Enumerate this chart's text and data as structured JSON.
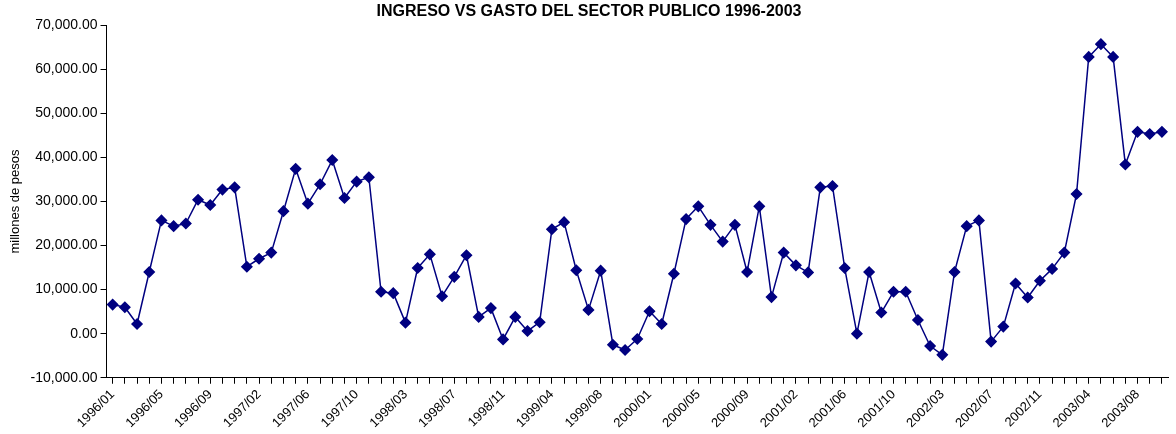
{
  "chart_data": {
    "type": "line",
    "title": "INGRESO VS GASTO DEL SECTOR PUBLICO 1996-2003",
    "ylabel": "millones de pesos",
    "categories": [
      "1996/01",
      null,
      null,
      null,
      "1996/05",
      null,
      null,
      null,
      "1996/09",
      null,
      null,
      null,
      "1997/02",
      null,
      null,
      null,
      "1997/06",
      null,
      null,
      null,
      "1997/10",
      null,
      null,
      null,
      "1998/03",
      null,
      null,
      null,
      "1998/07",
      null,
      null,
      null,
      "1998/11",
      null,
      null,
      null,
      "1999/04",
      null,
      null,
      null,
      "1999/08",
      null,
      null,
      null,
      "2000/01",
      null,
      null,
      null,
      "2000/05",
      null,
      null,
      null,
      "2000/09",
      null,
      null,
      null,
      "2001/02",
      null,
      null,
      null,
      "2001/06",
      null,
      null,
      null,
      "2001/10",
      null,
      null,
      null,
      "2002/03",
      null,
      null,
      null,
      "2002/07",
      null,
      null,
      null,
      "2002/11",
      null,
      null,
      null,
      "2003/04",
      null,
      null,
      null,
      "2003/08",
      null,
      null
    ],
    "series": [
      {
        "color": "#000080",
        "values": [
          6600,
          6000,
          2200,
          14000,
          25700,
          24400,
          25000,
          30400,
          29200,
          32700,
          33200,
          15200,
          17000,
          18400,
          27800,
          37400,
          29500,
          33900,
          39400,
          30800,
          34500,
          35500,
          9500,
          9200,
          2500,
          14900,
          18000,
          8500,
          12900,
          17800,
          3800,
          5800,
          -1300,
          3800,
          600,
          2600,
          23700,
          25300,
          14400,
          5400,
          14300,
          -2500,
          -3700,
          -1200,
          5100,
          2200,
          13600,
          26000,
          28900,
          24700,
          20900,
          24700,
          14000,
          28900,
          8300,
          18400,
          15500,
          13900,
          33200,
          33500,
          14900,
          0,
          14000,
          4800,
          9500,
          9500,
          3100,
          -2800,
          -4800,
          14000,
          24400,
          25700,
          -1800,
          1600,
          11400,
          8200,
          12000,
          14700,
          18400,
          31700,
          62800,
          65700,
          62800,
          38400,
          45800,
          45300,
          45800
        ]
      }
    ],
    "ylim": [
      -10000,
      70000
    ],
    "yticks": [
      {
        "value": -10000,
        "label": "-10,000.00"
      },
      {
        "value": 0,
        "label": "0.00"
      },
      {
        "value": 10000,
        "label": "10,000.00"
      },
      {
        "value": 20000,
        "label": "20,000.00"
      },
      {
        "value": 30000,
        "label": "30,000.00"
      },
      {
        "value": 40000,
        "label": "40,000.00"
      },
      {
        "value": 50000,
        "label": "50,000.00"
      },
      {
        "value": 60000,
        "label": "60,000.00"
      },
      {
        "value": 70000,
        "label": "70,000.00"
      }
    ],
    "grid": false,
    "legend": false,
    "marker": "diamond",
    "line_style": "solid"
  }
}
